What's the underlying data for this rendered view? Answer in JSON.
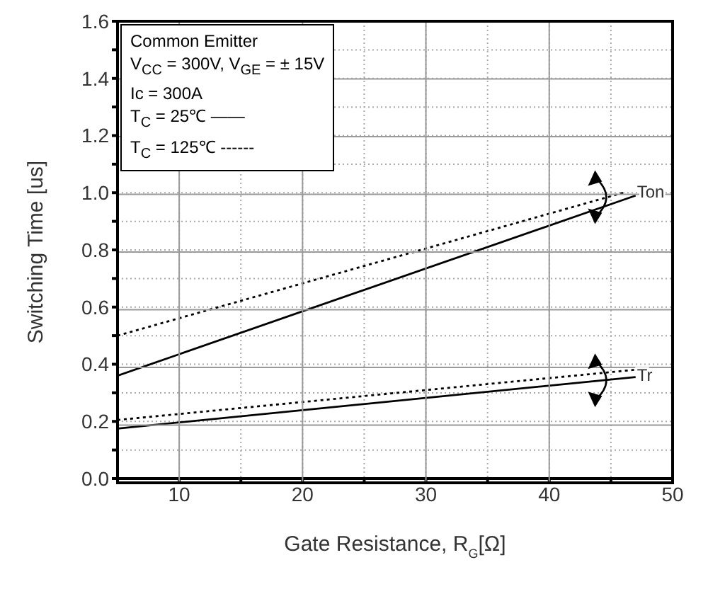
{
  "chart_data": {
    "type": "line",
    "xlabel": "Gate Resistance, R$_{G}$[Ω]",
    "ylabel": "Switching Time [us]",
    "xlim": [
      5,
      50
    ],
    "ylim": [
      0,
      1.6
    ],
    "xticks": [
      {
        "value": 10,
        "label": "10"
      },
      {
        "value": 15,
        "label": null
      },
      {
        "value": 20,
        "label": "20"
      },
      {
        "value": 25,
        "label": null
      },
      {
        "value": 30,
        "label": "30"
      },
      {
        "value": 35,
        "label": null
      },
      {
        "value": 40,
        "label": "40"
      },
      {
        "value": 45,
        "label": null
      },
      {
        "value": 50,
        "label": "50"
      }
    ],
    "yticks": [
      {
        "value": 0,
        "label": "0.0"
      },
      {
        "value": 0.1,
        "label": null
      },
      {
        "value": 0.2,
        "label": "0.2"
      },
      {
        "value": 0.3,
        "label": null
      },
      {
        "value": 0.4,
        "label": "0.4"
      },
      {
        "value": 0.5,
        "label": null
      },
      {
        "value": 0.6,
        "label": "0.6"
      },
      {
        "value": 0.7,
        "label": null
      },
      {
        "value": 0.8,
        "label": "0.8"
      },
      {
        "value": 0.9,
        "label": null
      },
      {
        "value": 1.0,
        "label": "1.0"
      },
      {
        "value": 1.1,
        "label": null
      },
      {
        "value": 1.2,
        "label": "1.2"
      },
      {
        "value": 1.3,
        "label": null
      },
      {
        "value": 1.4,
        "label": "1.4"
      },
      {
        "value": 1.5,
        "label": null
      },
      {
        "value": 1.6,
        "label": "1.6"
      }
    ],
    "grid": true,
    "series": [
      {
        "color": "#000000",
        "line_style": "solid",
        "x": [
          5,
          47
        ],
        "values": [
          0.36,
          0.99
        ]
      },
      {
        "color": "#000000",
        "line_style": "dotted",
        "x": [
          5,
          46
        ],
        "values": [
          0.5,
          1.0
        ]
      },
      {
        "color": "#000000",
        "line_style": "solid",
        "x": [
          5,
          47
        ],
        "values": [
          0.175,
          0.355
        ]
      },
      {
        "color": "#000000",
        "line_style": "dotted",
        "x": [
          5,
          48
        ],
        "values": [
          0.205,
          0.385
        ]
      }
    ],
    "annotations": [
      "Common Emitter",
      "V$_{CC}$ = 300V, V$_{GE}$ = ±  15V",
      "Ic = 300A",
      "T$_{C}$ =   25℃ ——",
      "T$_{C}$ = 125℃ ------",
      {
        "text": "Ton",
        "x": 47,
        "y": 0.99
      },
      {
        "text": "Tr",
        "x": 47,
        "y": 0.355
      }
    ]
  }
}
